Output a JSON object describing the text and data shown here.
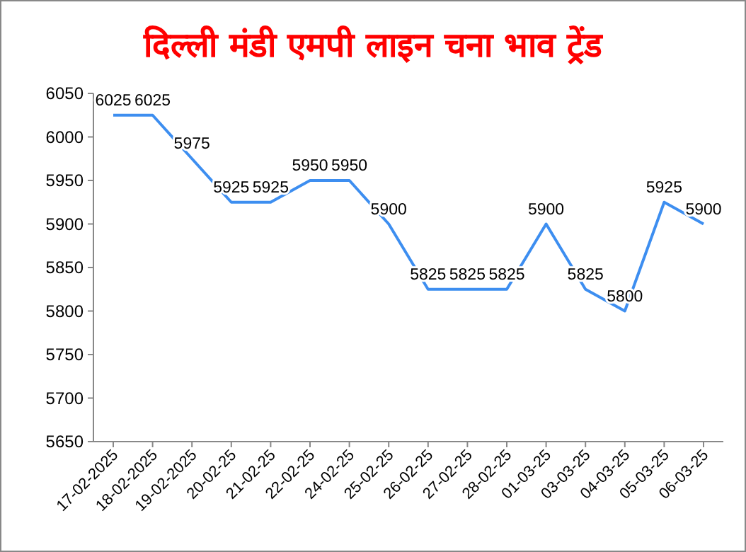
{
  "chart_data": {
    "type": "line",
    "title": "दिल्ली मंडी एमपी लाइन चना भाव ट्रेंड",
    "categories": [
      "17-02-2025",
      "18-02-2025",
      "19-02-2025",
      "20-02-25",
      "21-02-25",
      "22-02-25",
      "24-02-25",
      "25-02-25",
      "26-02-25",
      "27-02-25",
      "28-02-25",
      "01-03-25",
      "03-03-25",
      "04-03-25",
      "05-03-25",
      "06-03-25"
    ],
    "series": [
      {
        "color": "#3d8ef0",
        "values": [
          6025,
          6025,
          5975,
          5925,
          5925,
          5950,
          5950,
          5900,
          5825,
          5825,
          5825,
          5900,
          5825,
          5800,
          5925,
          5900
        ]
      }
    ],
    "ylim": [
      5650,
      6050
    ],
    "yticks": [
      5650,
      5700,
      5750,
      5800,
      5850,
      5900,
      5950,
      6000,
      6050
    ],
    "data_labels": true,
    "grid": false,
    "marker": "none",
    "line_style": "solid"
  }
}
